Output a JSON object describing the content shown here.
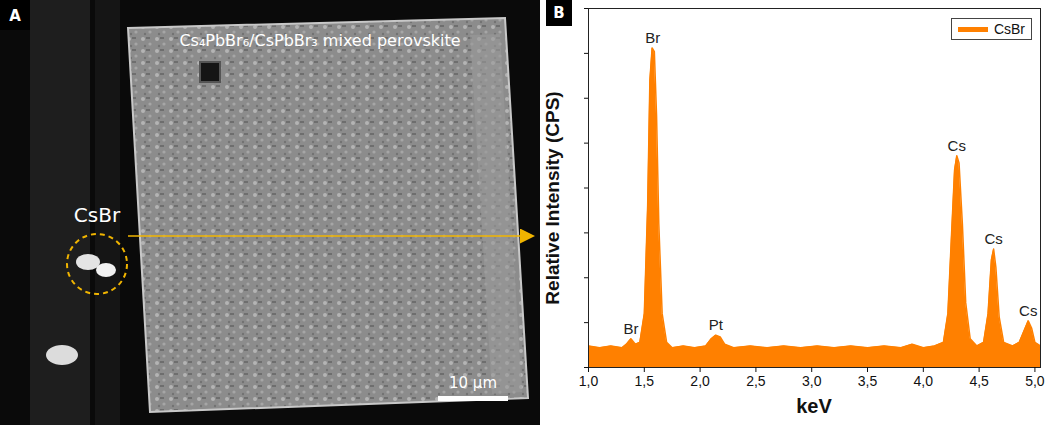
{
  "panel_a": {
    "label": "A",
    "sample": "Cs₄PbBr₆/CsPbBr₃ mixed perovskite",
    "particle": "CsBr",
    "scale_bar": "10 μm"
  },
  "chart_data": {
    "panel": "B",
    "type": "area",
    "x_label": "keV",
    "y_label": "Relative Intensity (CPS)",
    "x": [
      1.0,
      1.1,
      1.2,
      1.3,
      1.34,
      1.38,
      1.42,
      1.46,
      1.5,
      1.53,
      1.55,
      1.57,
      1.59,
      1.61,
      1.63,
      1.66,
      1.7,
      1.75,
      1.85,
      1.95,
      2.05,
      2.1,
      2.14,
      2.18,
      2.22,
      2.3,
      2.45,
      2.6,
      2.75,
      2.9,
      3.05,
      3.2,
      3.35,
      3.5,
      3.65,
      3.8,
      3.9,
      4.0,
      4.1,
      4.18,
      4.22,
      4.25,
      4.28,
      4.3,
      4.32,
      4.35,
      4.38,
      4.42,
      4.48,
      4.54,
      4.58,
      4.61,
      4.63,
      4.65,
      4.68,
      4.72,
      4.8,
      4.86,
      4.9,
      4.94,
      4.97,
      5.0,
      5.05
    ],
    "series": [
      {
        "name": "CsBr",
        "color": "#ff8000",
        "values": [
          6,
          5.5,
          6,
          5.5,
          6.5,
          8,
          6.5,
          7,
          15,
          45,
          80,
          89,
          88,
          70,
          40,
          15,
          7,
          5.5,
          6,
          5.5,
          6,
          8,
          9,
          8.5,
          6.5,
          5.5,
          6,
          5.5,
          6,
          5.5,
          6,
          5.5,
          6,
          5.5,
          6,
          5.5,
          6.5,
          5.5,
          6,
          7,
          15,
          35,
          55,
          59,
          57,
          40,
          18,
          8,
          6,
          7,
          15,
          30,
          33,
          28,
          14,
          7,
          6,
          7,
          10,
          13,
          11,
          7,
          6
        ]
      }
    ],
    "xlim": [
      1.0,
      5.05
    ],
    "xticks": [
      {
        "value": 1.0,
        "label": "1,0"
      },
      {
        "value": 1.5,
        "label": "1,5"
      },
      {
        "value": 2.0,
        "label": "2,0"
      },
      {
        "value": 2.5,
        "label": "2,5"
      },
      {
        "value": 3.0,
        "label": "3,0"
      },
      {
        "value": 3.5,
        "label": "3,5"
      },
      {
        "value": 4.0,
        "label": "4,0"
      },
      {
        "value": 4.5,
        "label": "4,5"
      },
      {
        "value": 5.0,
        "label": "5,0"
      }
    ],
    "ylim": [
      0,
      100
    ],
    "yticks": [
      0,
      12.5,
      25,
      37.5,
      50,
      62.5,
      75,
      87.5,
      100
    ],
    "tick_labels": "x",
    "legend": "top-right",
    "annotations": [
      {
        "text": "Br",
        "x": 1.38,
        "y": 8
      },
      {
        "text": "Br",
        "x": 1.575,
        "y": 89
      },
      {
        "text": "Pt",
        "x": 2.14,
        "y": 9
      },
      {
        "text": "Cs",
        "x": 4.3,
        "y": 59
      },
      {
        "text": "Cs",
        "x": 4.63,
        "y": 33
      },
      {
        "text": "Cs",
        "x": 4.94,
        "y": 13
      }
    ]
  }
}
